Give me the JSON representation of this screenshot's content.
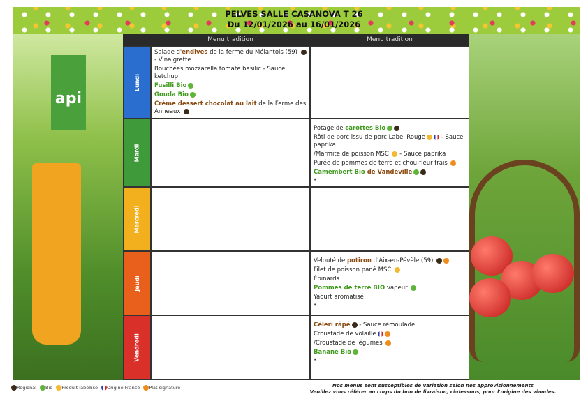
{
  "header": {
    "title": "PELVES SALLE CASANOVA T 26",
    "dates": "Du 12/01/2026 au 16/01/2026"
  },
  "logo": "api",
  "columns": [
    "Menu tradition",
    "Menu tradition"
  ],
  "days": [
    {
      "name": "Lundi",
      "color": "#2a6fcf"
    },
    {
      "name": "Mardi",
      "color": "#3f9a3a"
    },
    {
      "name": "Mercredi",
      "color": "#f2b01e"
    },
    {
      "name": "Jeudi",
      "color": "#e8601c"
    },
    {
      "name": "Vendredi",
      "color": "#d9302a"
    }
  ],
  "menu": {
    "lundi": [
      {
        "parts": [
          {
            "t": "Salade d'"
          },
          {
            "t": "endives",
            "s": "b"
          },
          {
            "t": " de la ferme du Mélantois (59) "
          }
        ],
        "icons": [
          "regional"
        ],
        "after": " - Vinaigrette"
      },
      {
        "parts": [
          {
            "t": "Bouchées mozzarella tomate basilic - Sauce ketchup"
          }
        ]
      },
      {
        "parts": [
          {
            "t": "Fusilli Bio",
            "s": "g"
          }
        ],
        "icons": [
          "bio"
        ]
      },
      {
        "parts": [
          {
            "t": "Gouda Bio",
            "s": "g"
          }
        ],
        "icons": [
          "bio"
        ]
      },
      {
        "parts": [
          {
            "t": "Crème dessert chocolat au lait",
            "s": "b"
          },
          {
            "t": " de la Ferme des Anneaux "
          }
        ],
        "icons": [
          "regional"
        ]
      },
      {
        "parts": [
          {
            "t": "*"
          }
        ]
      }
    ],
    "mardi": [
      {
        "parts": [
          {
            "t": "Potage de "
          },
          {
            "t": "carottes Bio",
            "s": "g"
          }
        ],
        "icons": [
          "bio",
          "regional"
        ]
      },
      {
        "parts": [
          {
            "t": "Rôti de porc issu de porc Label Rouge"
          }
        ],
        "icons": [
          "labellise",
          "origine-france"
        ],
        "after": " - Sauce paprika"
      },
      {
        "parts": [
          {
            "t": "/Marmite de poisson MSC "
          }
        ],
        "icons": [
          "labellise"
        ],
        "after": " - Sauce paprika"
      },
      {
        "parts": [
          {
            "t": "Purée de pommes de terre et chou-fleur frais "
          }
        ],
        "icons": [
          "signature"
        ]
      },
      {
        "parts": [
          {
            "t": "Camembert Bio",
            "s": "g"
          },
          {
            "t": " de Vandeville",
            "s": "b"
          }
        ],
        "icons": [
          "bio",
          "regional"
        ]
      },
      {
        "parts": [
          {
            "t": "*"
          }
        ]
      }
    ],
    "jeudi": [
      {
        "parts": [
          {
            "t": "Velouté de "
          },
          {
            "t": "potiron",
            "s": "b"
          },
          {
            "t": " d'Aix-en-Pévèle (59) "
          }
        ],
        "icons": [
          "regional",
          "signature"
        ]
      },
      {
        "parts": [
          {
            "t": "Filet de poisson pané  MSC "
          }
        ],
        "icons": [
          "labellise"
        ]
      },
      {
        "parts": [
          {
            "t": "Épinards"
          }
        ]
      },
      {
        "parts": [
          {
            "t": "Pommes de terre BIO",
            "s": "g"
          },
          {
            "t": " vapeur "
          }
        ],
        "icons": [
          "bio"
        ]
      },
      {
        "parts": [
          {
            "t": "Yaourt aromatisé"
          }
        ]
      },
      {
        "parts": [
          {
            "t": "*"
          }
        ]
      }
    ],
    "vendredi": [
      {
        "parts": [
          {
            "t": "Céleri râpé",
            "s": "b"
          }
        ],
        "icons": [
          "regional"
        ],
        "after": " - Sauce rémoulade"
      },
      {
        "parts": [
          {
            "t": "Croustade de volaille"
          }
        ],
        "icons": [
          "origine-france",
          "signature"
        ]
      },
      {
        "parts": [
          {
            "t": "/Croustade de légumes "
          }
        ],
        "icons": [
          "signature"
        ]
      },
      {
        "parts": [
          {
            "t": "Banane Bio",
            "s": "g"
          }
        ],
        "icons": [
          "bio"
        ]
      },
      {
        "parts": [
          {
            "t": "*"
          }
        ]
      }
    ]
  },
  "legend": [
    {
      "icon": "regional",
      "label": "Regional"
    },
    {
      "icon": "bio",
      "label": "Bio"
    },
    {
      "icon": "labellise",
      "label": "Produit labellisé"
    },
    {
      "icon": "origine-france",
      "label": "Origine France"
    },
    {
      "icon": "signature",
      "label": "Plat signature"
    }
  ],
  "note": [
    "Nos menus sont susceptibles de variation selon nos approvisionnements",
    "Veuillez vous référer au corps du bon de livraison, ci-dessous, pour l'origine des viandes."
  ]
}
